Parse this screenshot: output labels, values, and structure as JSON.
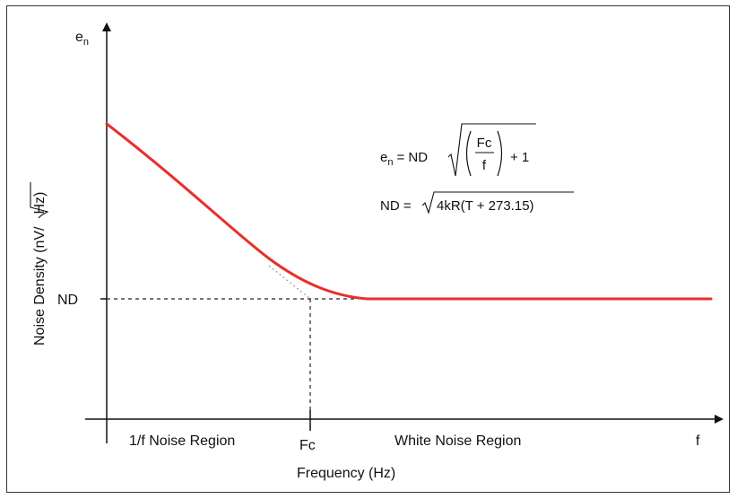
{
  "chart_data": {
    "type": "line",
    "title": "",
    "xlabel": "Frequency (Hz)",
    "ylabel_prefix": "Noise Density (nV/",
    "ylabel_radicand": "Hz",
    "ylabel_suffix": ")",
    "y_axis_symbol": "e",
    "y_axis_symbol_sub": "n",
    "x_axis_symbol": "f",
    "nd_label": "ND",
    "fc_label": "Fc",
    "regions": [
      "1/f Noise Region",
      "White Noise Region"
    ],
    "series": [
      {
        "color": "#e8302a"
      }
    ],
    "asymptote_color": "#999999",
    "equation1": {
      "lhs_base": "e",
      "lhs_sub": "n",
      "equals": "= ND",
      "numerator": "Fc",
      "denominator": "f",
      "tail": "+ 1"
    },
    "equation2": {
      "lhs": "ND =",
      "radicand": "4kR(T + 273.15)"
    },
    "grid": false,
    "legend": "none"
  }
}
